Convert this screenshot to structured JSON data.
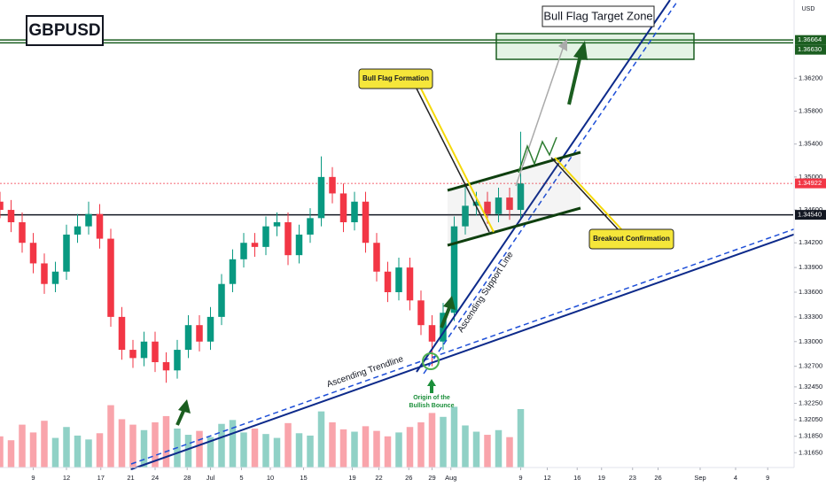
{
  "chart_data": {
    "type": "candlestick",
    "title": "GBPUSD",
    "currency": "USD",
    "annotations": {
      "target_zone": "Bull Flag Target Zone",
      "flag_formation": "Bull Flag Formation",
      "breakout": "Breakout Confirmation",
      "trendline": "Ascending Trendline",
      "support_line": "Ascending Support Line",
      "origin": [
        "Origin of the",
        "Bullish Bounce"
      ]
    },
    "open": [
      1.347,
      1.346,
      1.3445,
      1.342,
      1.3395,
      1.337,
      1.3385,
      1.343,
      1.344,
      1.3455,
      1.3425,
      1.333,
      1.329,
      1.328,
      1.33,
      1.3275,
      1.3265,
      1.329,
      1.332,
      1.33,
      1.333,
      1.337,
      1.34,
      1.342,
      1.3415,
      1.344,
      1.3445,
      1.3405,
      1.343,
      1.345,
      1.35,
      1.348,
      1.3445,
      1.347,
      1.342,
      1.3385,
      1.336,
      1.339,
      1.335,
      1.332,
      1.33,
      1.3335,
      1.344,
      1.3465,
      1.347,
      1.3455,
      1.3475,
      1.346
    ],
    "high": [
      1.3482,
      1.3472,
      1.3457,
      1.3432,
      1.3407,
      1.3397,
      1.3442,
      1.3455,
      1.347,
      1.3467,
      1.3437,
      1.3342,
      1.3302,
      1.3312,
      1.3312,
      1.3287,
      1.3302,
      1.3332,
      1.3332,
      1.3342,
      1.3382,
      1.3412,
      1.3432,
      1.3432,
      1.3452,
      1.3457,
      1.3457,
      1.3442,
      1.3462,
      1.3525,
      1.3512,
      1.3492,
      1.3482,
      1.3482,
      1.3432,
      1.3397,
      1.3402,
      1.3402,
      1.3362,
      1.3332,
      1.3347,
      1.3452,
      1.349,
      1.3482,
      1.3482,
      1.3487,
      1.3487,
      1.3555
    ],
    "low": [
      1.345,
      1.3433,
      1.3408,
      1.3383,
      1.3358,
      1.336,
      1.3375,
      1.342,
      1.343,
      1.3413,
      1.3318,
      1.3278,
      1.3268,
      1.327,
      1.3263,
      1.325,
      1.3255,
      1.328,
      1.3288,
      1.329,
      1.332,
      1.336,
      1.339,
      1.3403,
      1.3405,
      1.3428,
      1.3393,
      1.3395,
      1.342,
      1.344,
      1.3468,
      1.3433,
      1.3435,
      1.3408,
      1.3373,
      1.3348,
      1.335,
      1.3338,
      1.3308,
      1.327,
      1.329,
      1.3325,
      1.343,
      1.3453,
      1.3443,
      1.3445,
      1.3448,
      1.345
    ],
    "close": [
      1.346,
      1.3445,
      1.342,
      1.3395,
      1.337,
      1.3385,
      1.343,
      1.344,
      1.3455,
      1.3425,
      1.333,
      1.329,
      1.328,
      1.33,
      1.3275,
      1.3265,
      1.329,
      1.332,
      1.33,
      1.333,
      1.337,
      1.34,
      1.342,
      1.3415,
      1.344,
      1.3445,
      1.3405,
      1.343,
      1.345,
      1.35,
      1.348,
      1.3445,
      1.347,
      1.342,
      1.3385,
      1.336,
      1.339,
      1.335,
      1.332,
      1.33,
      1.3335,
      1.344,
      1.3465,
      1.347,
      1.3455,
      1.3475,
      1.346,
      1.3492
    ],
    "volume": [
      40,
      35,
      55,
      45,
      60,
      38,
      52,
      41,
      36,
      44,
      80,
      62,
      55,
      48,
      58,
      66,
      50,
      42,
      47,
      39,
      56,
      61,
      45,
      50,
      43,
      38,
      57,
      44,
      41,
      72,
      58,
      49,
      46,
      53,
      47,
      40,
      45,
      52,
      58,
      70,
      65,
      78,
      54,
      46,
      42,
      48,
      39,
      75
    ],
    "volume_lim": [
      0,
      100
    ],
    "up_color": "#089981",
    "down_color": "#f23645",
    "xlim": [
      0,
      71.6
    ],
    "ylim": [
      1.3147,
      1.3715
    ],
    "xticks": [
      {
        "value": 3.0,
        "label": "9"
      },
      {
        "value": 6.0,
        "label": "12"
      },
      {
        "value": 9.1,
        "label": "17"
      },
      {
        "value": 11.8,
        "label": "21"
      },
      {
        "value": 14.0,
        "label": "24"
      },
      {
        "value": 16.9,
        "label": "28"
      },
      {
        "value": 19.0,
        "label": "Jul"
      },
      {
        "value": 21.8,
        "label": "5"
      },
      {
        "value": 24.4,
        "label": "10"
      },
      {
        "value": 27.4,
        "label": "15"
      },
      {
        "value": 31.8,
        "label": "19"
      },
      {
        "value": 34.2,
        "label": "22"
      },
      {
        "value": 36.9,
        "label": "26"
      },
      {
        "value": 39.0,
        "label": "29"
      },
      {
        "value": 40.7,
        "label": "Aug"
      },
      {
        "value": 47.0,
        "label": "9"
      },
      {
        "value": 49.4,
        "label": "12"
      },
      {
        "value": 52.1,
        "label": "16"
      },
      {
        "value": 54.3,
        "label": "19"
      },
      {
        "value": 57.1,
        "label": "23"
      },
      {
        "value": 59.4,
        "label": "26"
      },
      {
        "value": 63.2,
        "label": "Sep"
      },
      {
        "value": 66.4,
        "label": "4"
      },
      {
        "value": 69.3,
        "label": "9"
      }
    ],
    "yticks": [
      {
        "value": 1.362,
        "label": "1.36200"
      },
      {
        "value": 1.358,
        "label": "1.35800"
      },
      {
        "value": 1.354,
        "label": "1.35400"
      },
      {
        "value": 1.35,
        "label": "1.35000"
      },
      {
        "value": 1.346,
        "label": "1.34600"
      },
      {
        "value": 1.342,
        "label": "1.34200"
      },
      {
        "value": 1.339,
        "label": "1.33900"
      },
      {
        "value": 1.336,
        "label": "1.33600"
      },
      {
        "value": 1.333,
        "label": "1.33300"
      },
      {
        "value": 1.33,
        "label": "1.33000"
      },
      {
        "value": 1.327,
        "label": "1.32700"
      },
      {
        "value": 1.3245,
        "label": "1.32450"
      },
      {
        "value": 1.3225,
        "label": "1.32250"
      },
      {
        "value": 1.3205,
        "label": "1.32050"
      },
      {
        "value": 1.3185,
        "label": "1.31850"
      },
      {
        "value": 1.3165,
        "label": "1.31650"
      }
    ],
    "price_labels": [
      {
        "value": 1.36664,
        "label": "1.36664",
        "color": "#1b5e20"
      },
      {
        "value": 1.3663,
        "label": "1.36630",
        "color": "#1b5e20"
      },
      {
        "value": 1.34922,
        "label": "1.34922",
        "color": "#f23645"
      },
      {
        "value": 1.3454,
        "label": "1.34540",
        "color": "#131722"
      }
    ],
    "grid": false
  }
}
